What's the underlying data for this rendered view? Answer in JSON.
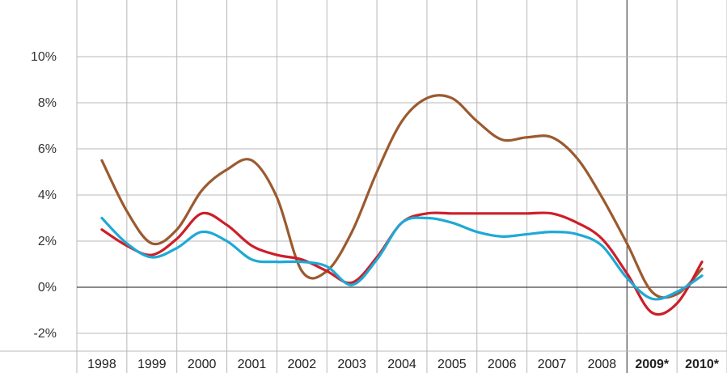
{
  "chart_data": {
    "type": "line",
    "categories": [
      "1998",
      "1999",
      "2000",
      "2001",
      "2002",
      "2003",
      "2004",
      "2005",
      "2006",
      "2007",
      "2008",
      "2009*",
      "2010*"
    ],
    "bold_categories": [
      "2009*",
      "2010*"
    ],
    "ylim": [
      -3,
      12
    ],
    "yticks": [
      -2,
      0,
      2,
      4,
      6,
      8,
      10
    ],
    "ytick_labels": [
      "-2%",
      "0%",
      "2%",
      "4%",
      "6%",
      "8%",
      "10%"
    ],
    "grid": true,
    "title": "",
    "xlabel": "",
    "ylabel": "",
    "series": [
      {
        "color": "#9b5a2f",
        "points": [
          [
            0.0,
            5.5
          ],
          [
            0.5,
            3.3
          ],
          [
            1.0,
            1.9
          ],
          [
            1.5,
            2.5
          ],
          [
            2.0,
            4.2
          ],
          [
            2.5,
            5.1
          ],
          [
            3.0,
            5.5
          ],
          [
            3.5,
            3.9
          ],
          [
            4.0,
            0.7
          ],
          [
            4.5,
            0.7
          ],
          [
            5.0,
            2.4
          ],
          [
            5.5,
            5.0
          ],
          [
            6.0,
            7.2
          ],
          [
            6.5,
            8.2
          ],
          [
            7.0,
            8.2
          ],
          [
            7.5,
            7.2
          ],
          [
            8.0,
            6.4
          ],
          [
            8.5,
            6.5
          ],
          [
            9.0,
            6.5
          ],
          [
            9.5,
            5.6
          ],
          [
            10.0,
            3.9
          ],
          [
            10.5,
            1.9
          ],
          [
            11.0,
            -0.2
          ],
          [
            11.5,
            -0.3
          ],
          [
            12.0,
            0.8
          ]
        ]
      },
      {
        "color": "#cc1f2a",
        "points": [
          [
            0.0,
            2.5
          ],
          [
            0.5,
            1.8
          ],
          [
            1.0,
            1.4
          ],
          [
            1.5,
            2.1
          ],
          [
            2.0,
            3.2
          ],
          [
            2.5,
            2.7
          ],
          [
            3.0,
            1.8
          ],
          [
            3.5,
            1.4
          ],
          [
            4.0,
            1.2
          ],
          [
            4.5,
            0.7
          ],
          [
            5.0,
            0.2
          ],
          [
            5.5,
            1.3
          ],
          [
            6.0,
            2.8
          ],
          [
            6.5,
            3.2
          ],
          [
            7.0,
            3.2
          ],
          [
            7.5,
            3.2
          ],
          [
            8.0,
            3.2
          ],
          [
            8.5,
            3.2
          ],
          [
            9.0,
            3.2
          ],
          [
            9.5,
            2.8
          ],
          [
            10.0,
            2.1
          ],
          [
            10.5,
            0.6
          ],
          [
            11.0,
            -1.1
          ],
          [
            11.5,
            -0.7
          ],
          [
            12.0,
            1.1
          ]
        ]
      },
      {
        "color": "#1ea9d6",
        "points": [
          [
            0.0,
            3.0
          ],
          [
            0.5,
            1.9
          ],
          [
            1.0,
            1.3
          ],
          [
            1.5,
            1.7
          ],
          [
            2.0,
            2.4
          ],
          [
            2.5,
            2.0
          ],
          [
            3.0,
            1.2
          ],
          [
            3.5,
            1.1
          ],
          [
            4.0,
            1.1
          ],
          [
            4.5,
            0.9
          ],
          [
            5.0,
            0.1
          ],
          [
            5.5,
            1.2
          ],
          [
            6.0,
            2.8
          ],
          [
            6.5,
            3.0
          ],
          [
            7.0,
            2.8
          ],
          [
            7.5,
            2.4
          ],
          [
            8.0,
            2.2
          ],
          [
            8.5,
            2.3
          ],
          [
            9.0,
            2.4
          ],
          [
            9.5,
            2.3
          ],
          [
            10.0,
            1.8
          ],
          [
            10.5,
            0.4
          ],
          [
            11.0,
            -0.5
          ],
          [
            11.5,
            -0.2
          ],
          [
            12.0,
            0.5
          ]
        ]
      }
    ]
  }
}
